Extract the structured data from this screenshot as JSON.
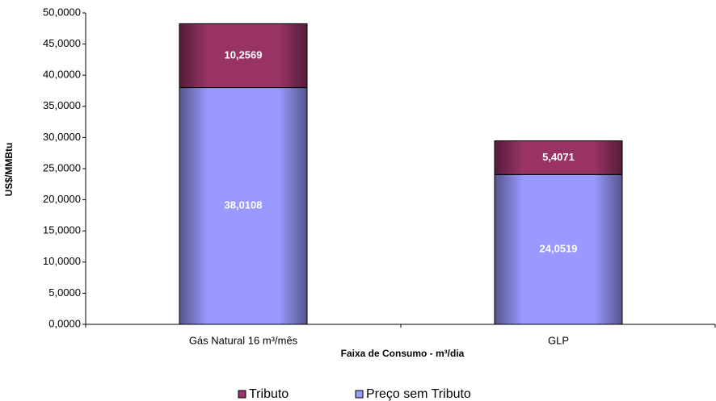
{
  "chart_data": {
    "type": "stacked_bar",
    "y_label": "US$/MMBtu",
    "x_label": "Faixa de Consumo  - m³/dia",
    "categories": [
      "Gás Natural  16 m³/mês",
      "GLP"
    ],
    "series": [
      {
        "name": "Preço sem Tributo",
        "color": "#9999ff",
        "values": [
          38.0108,
          24.0519
        ],
        "value_labels": [
          "38,0108",
          "24,0519"
        ]
      },
      {
        "name": "Tributo",
        "color": "#993366",
        "values": [
          10.2569,
          5.4071
        ],
        "value_labels": [
          "10,2569",
          "5,4071"
        ]
      }
    ],
    "ylim": [
      0,
      50
    ],
    "yticks": [
      {
        "value": 0,
        "label": "0,0000"
      },
      {
        "value": 5,
        "label": "5,0000"
      },
      {
        "value": 10,
        "label": "10,0000"
      },
      {
        "value": 15,
        "label": "15,0000"
      },
      {
        "value": 20,
        "label": "20,0000"
      },
      {
        "value": 25,
        "label": "25,0000"
      },
      {
        "value": 30,
        "label": "30,0000"
      },
      {
        "value": 35,
        "label": "35,0000"
      },
      {
        "value": 40,
        "label": "40,0000"
      },
      {
        "value": 45,
        "label": "45,0000"
      },
      {
        "value": 50,
        "label": "50,0000"
      }
    ],
    "grid": false
  }
}
